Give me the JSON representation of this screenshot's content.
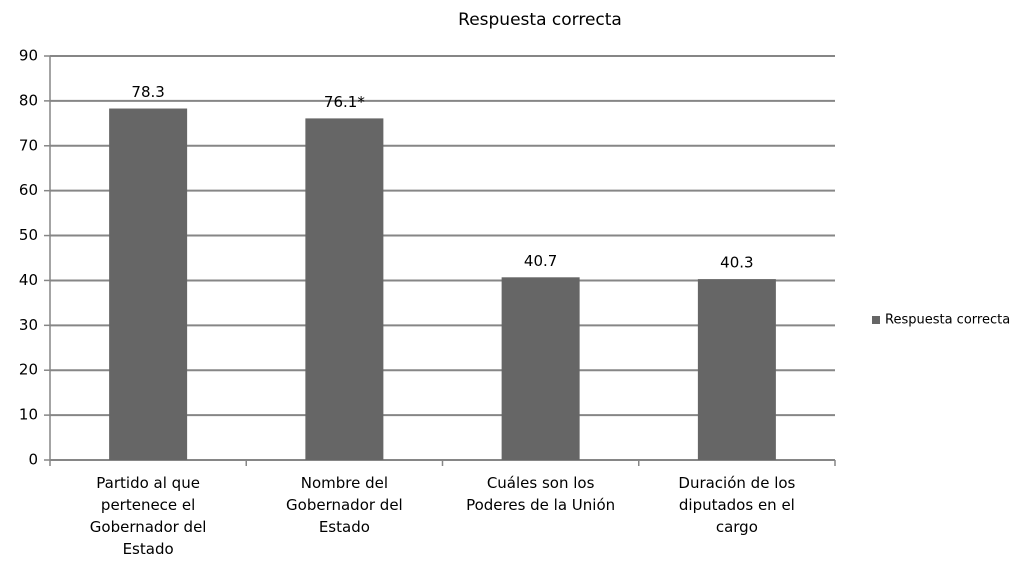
{
  "chart_data": {
    "type": "bar",
    "title": "Respuesta correcta",
    "categories": [
      "Partido al que pertenece el Gobernador del Estado",
      "Nombre del Gobernador del Estado",
      "Cuáles son los Poderes de la Unión",
      "Duración de los diputados en el cargo"
    ],
    "series": [
      {
        "name": "Respuesta correcta",
        "color": "#666666",
        "values": [
          78.3,
          76.1,
          40.7,
          40.3
        ],
        "value_labels": [
          "78.3",
          "76.1*",
          "40.7",
          "40.3"
        ]
      }
    ],
    "ylim": [
      0,
      90
    ],
    "yticks": [
      0,
      10,
      20,
      30,
      40,
      50,
      60,
      70,
      80,
      90
    ],
    "grid": true,
    "legend": "right"
  }
}
